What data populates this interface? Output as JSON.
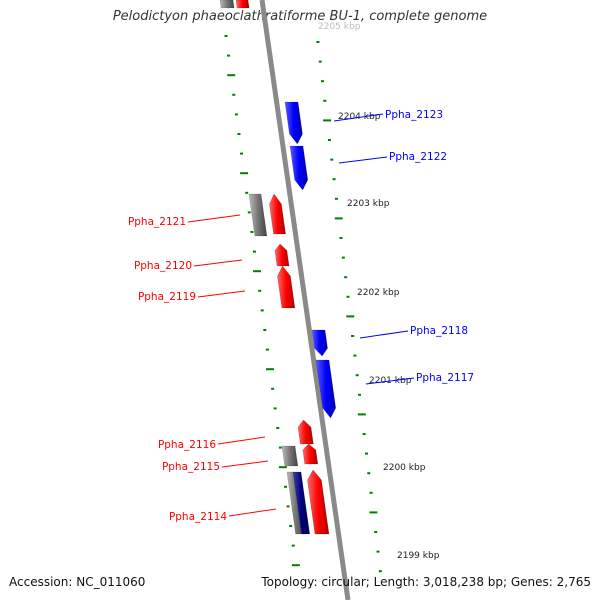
{
  "title": "Pelodictyon phaeoclathratiforme BU-1, complete genome",
  "footer": {
    "accession": "Accession: NC_011060",
    "summary": "Topology: circular; Length: 3,018,238 bp; Genes: 2,765"
  },
  "colors": {
    "plus_strand": "#0000ff",
    "minus_strand": "#ff0000",
    "other_feature": "#777777",
    "tick": "#008000",
    "backbone": "#888888"
  },
  "scale_labels": [
    {
      "kbp": 2204,
      "text": "2204 kbp"
    },
    {
      "kbp": 2203,
      "text": "2203 kbp"
    },
    {
      "kbp": 2202,
      "text": "2202 kbp"
    },
    {
      "kbp": 2201,
      "text": "2201 kbp"
    },
    {
      "kbp": 2200,
      "text": "2200 kbp"
    },
    {
      "kbp": 2199,
      "text": "2199 kbp"
    }
  ],
  "top_scale_label": "2205 kbp",
  "genes": [
    {
      "name": "Ppha_2123",
      "strand": "+",
      "color": "#0000ff"
    },
    {
      "name": "Ppha_2122",
      "strand": "+",
      "color": "#0000ff"
    },
    {
      "name": "Ppha_2121",
      "strand": "-",
      "color": "#d40000"
    },
    {
      "name": "Ppha_2120",
      "strand": "-",
      "color": "#d40000"
    },
    {
      "name": "Ppha_2119",
      "strand": "-",
      "color": "#d40000"
    },
    {
      "name": "Ppha_2118",
      "strand": "+",
      "color": "#0000ff"
    },
    {
      "name": "Ppha_2117",
      "strand": "+",
      "color": "#0000ff"
    },
    {
      "name": "Ppha_2116",
      "strand": "-",
      "color": "#d40000"
    },
    {
      "name": "Ppha_2115",
      "strand": "-",
      "color": "#d40000"
    },
    {
      "name": "Ppha_2114",
      "strand": "-",
      "color": "#d40000"
    }
  ]
}
